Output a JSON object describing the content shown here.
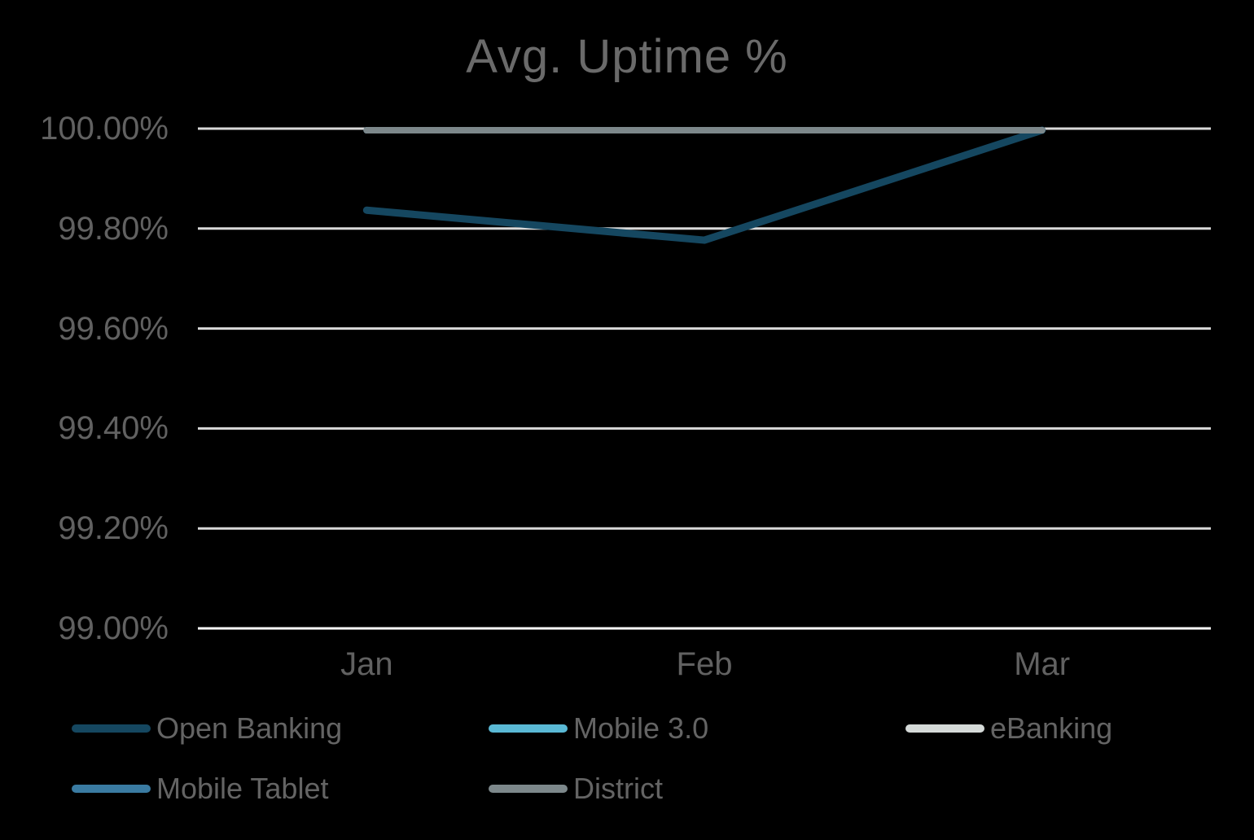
{
  "chart_data": {
    "type": "line",
    "title": "Avg. Uptime %",
    "categories": [
      "Jan",
      "Feb",
      "Mar"
    ],
    "series": [
      {
        "name": "Open Banking",
        "values": [
          99.84,
          99.78,
          100.0
        ],
        "color": "#154760"
      },
      {
        "name": "Mobile 3.0",
        "values": [
          100.0,
          100.0,
          100.0
        ],
        "color": "#5ab9d5"
      },
      {
        "name": "eBanking",
        "values": [
          100.0,
          100.0,
          100.0
        ],
        "color": "#d5dad8"
      },
      {
        "name": "Mobile Tablet",
        "values": [
          100.0,
          100.0,
          100.0
        ],
        "color": "#3a7ba2"
      },
      {
        "name": "District",
        "values": [
          100.0,
          100.0,
          100.0
        ],
        "color": "#7d888b"
      }
    ],
    "y_axis": {
      "min": 99.0,
      "max": 100.0,
      "step": 0.2,
      "tick_labels": [
        "99.00%",
        "99.20%",
        "99.40%",
        "99.60%",
        "99.80%",
        "100.00%"
      ]
    },
    "x_axis": {
      "tick_labels": [
        "Jan",
        "Feb",
        "Mar"
      ]
    },
    "legend_position": "bottom",
    "grid": true,
    "colors": {
      "background": "#000000",
      "gridline": "#d9d9d9",
      "axis_baseline": "#ffffff",
      "title_text": "#6a6a6a",
      "axis_text": "#616161",
      "legend_text": "#646464"
    }
  }
}
